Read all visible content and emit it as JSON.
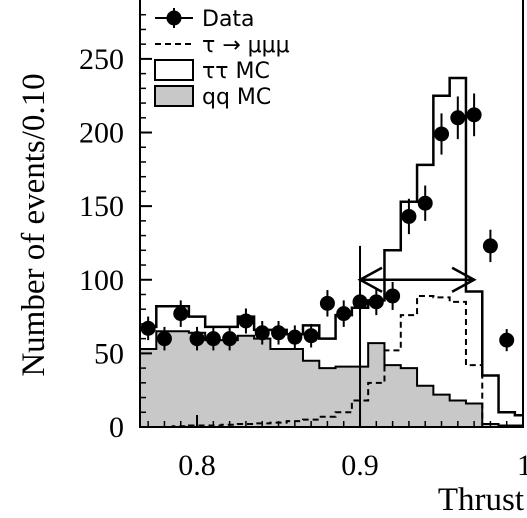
{
  "chart_data": {
    "type": "histogram",
    "xlabel": "Thrust",
    "ylabel": "Number of events/0.10",
    "xlim": [
      0.765,
      1.0
    ],
    "ylim": [
      0,
      290
    ],
    "bin_width": 0.01,
    "x_ticks": [
      {
        "value": 0.8,
        "label": "0.8"
      },
      {
        "value": 0.9,
        "label": "0.9"
      },
      {
        "value": 1.0,
        "label": "1"
      }
    ],
    "y_ticks": [
      {
        "value": 0,
        "label": "0"
      },
      {
        "value": 50,
        "label": "50"
      },
      {
        "value": 100,
        "label": "100"
      },
      {
        "value": 150,
        "label": "150"
      },
      {
        "value": 200,
        "label": "200"
      },
      {
        "value": 250,
        "label": "250"
      }
    ],
    "series": [
      {
        "name": "Data",
        "kind": "points",
        "x": [
          0.77,
          0.78,
          0.79,
          0.8,
          0.81,
          0.82,
          0.83,
          0.84,
          0.85,
          0.86,
          0.87,
          0.88,
          0.89,
          0.9,
          0.91,
          0.92,
          0.93,
          0.94,
          0.95,
          0.96,
          0.97,
          0.98,
          0.99
        ],
        "y": [
          67,
          60,
          77,
          60,
          60,
          60,
          72,
          64,
          64,
          61,
          62,
          84,
          77,
          85,
          85,
          89,
          143,
          152,
          199,
          210,
          212,
          123,
          59
        ],
        "err": [
          8,
          8,
          9,
          8,
          8,
          8,
          8.5,
          8,
          8,
          8,
          8,
          9,
          9,
          9,
          9,
          9.5,
          12,
          12,
          14,
          14.5,
          14.5,
          11,
          7.5
        ]
      },
      {
        "name": "ττ MC",
        "kind": "step",
        "edges": [
          0.765,
          0.775,
          0.785,
          0.795,
          0.805,
          0.815,
          0.825,
          0.835,
          0.845,
          0.855,
          0.865,
          0.875,
          0.885,
          0.895,
          0.905,
          0.915,
          0.925,
          0.935,
          0.945,
          0.955,
          0.965,
          0.975,
          0.985,
          0.995,
          1.0
        ],
        "values": [
          68,
          82,
          82,
          75,
          68,
          68,
          75,
          66,
          66,
          63,
          69,
          60,
          76,
          81,
          86,
          120,
          153,
          178,
          225,
          237,
          92,
          35,
          10,
          8
        ]
      },
      {
        "name": "qq MC",
        "kind": "filled-step",
        "edges": [
          0.765,
          0.775,
          0.785,
          0.795,
          0.805,
          0.815,
          0.825,
          0.835,
          0.845,
          0.855,
          0.865,
          0.875,
          0.885,
          0.895,
          0.905,
          0.915,
          0.925,
          0.935,
          0.945,
          0.955,
          0.965,
          0.975,
          0.985,
          0.995,
          1.0
        ],
        "values": [
          53,
          65,
          65,
          64,
          59,
          59,
          62,
          60,
          53,
          53,
          45,
          40,
          41,
          41,
          57,
          42,
          40,
          28,
          22,
          18,
          16,
          2,
          1,
          1
        ]
      },
      {
        "name": "τ → μμμ",
        "kind": "dashed-step",
        "edges": [
          0.765,
          0.775,
          0.785,
          0.795,
          0.805,
          0.815,
          0.825,
          0.835,
          0.845,
          0.855,
          0.865,
          0.875,
          0.885,
          0.895,
          0.905,
          0.915,
          0.925,
          0.935,
          0.945,
          0.955,
          0.965,
          0.975
        ],
        "values": [
          0,
          0,
          0.5,
          1,
          1,
          1.5,
          2,
          2.5,
          3,
          4,
          5,
          7,
          10,
          18,
          30,
          52,
          76,
          89,
          88,
          85,
          42,
          0
        ]
      }
    ],
    "annotation": {
      "type": "double-arrow",
      "x_start": 0.9,
      "x_end": 0.97,
      "y": 100
    },
    "legend": [
      {
        "label": "Data",
        "symbol": "point"
      },
      {
        "label": "τ → μμμ",
        "symbol": "dashed-line"
      },
      {
        "label": "ττ MC",
        "symbol": "open-box"
      },
      {
        "label": "qq MC",
        "symbol": "gray-box"
      }
    ],
    "legend_position": "top-left",
    "colors": {
      "fill": "#c8c8c8",
      "line": "#000000"
    }
  }
}
